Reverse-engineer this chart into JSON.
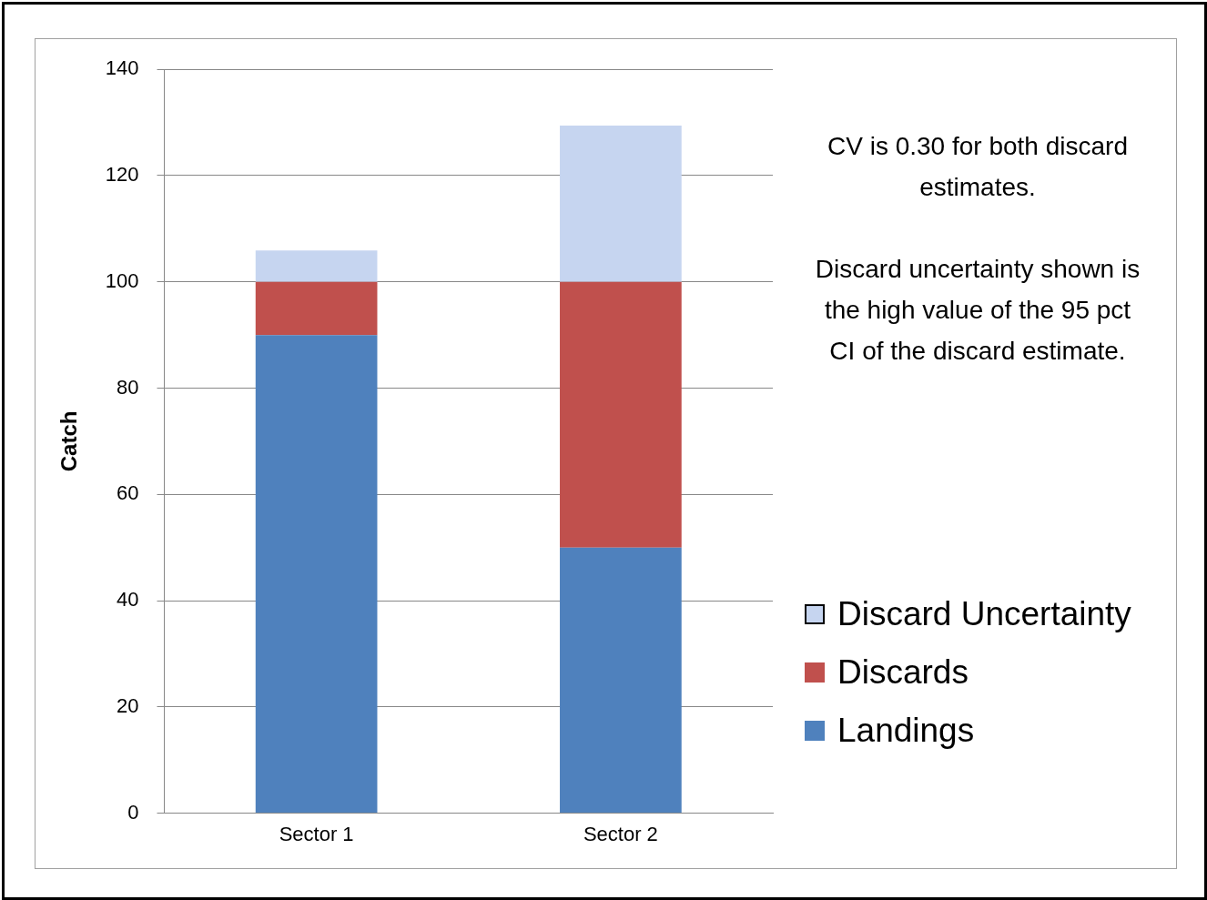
{
  "chart_data": {
    "type": "bar",
    "stacked": true,
    "ylabel": "Catch",
    "categories": [
      "Sector 1",
      "Sector 2"
    ],
    "series": [
      {
        "name": "Landings",
        "color": "#4f81bd",
        "values": [
          90,
          50
        ]
      },
      {
        "name": "Discards",
        "color": "#c0504d",
        "values": [
          10,
          50
        ]
      },
      {
        "name": "Discard Uncertainty",
        "color": "#c6d5f0",
        "values": [
          5.9,
          29.4
        ]
      }
    ],
    "ylim": [
      0,
      140
    ],
    "yticks": [
      0,
      20,
      40,
      60,
      80,
      100,
      120,
      140
    ],
    "grid": "y",
    "legend": "right",
    "annotations": [
      "CV is 0.30 for both discard estimates.",
      "Discard uncertainty shown is the high value of the 95 pct CI of the discard estimate."
    ]
  }
}
